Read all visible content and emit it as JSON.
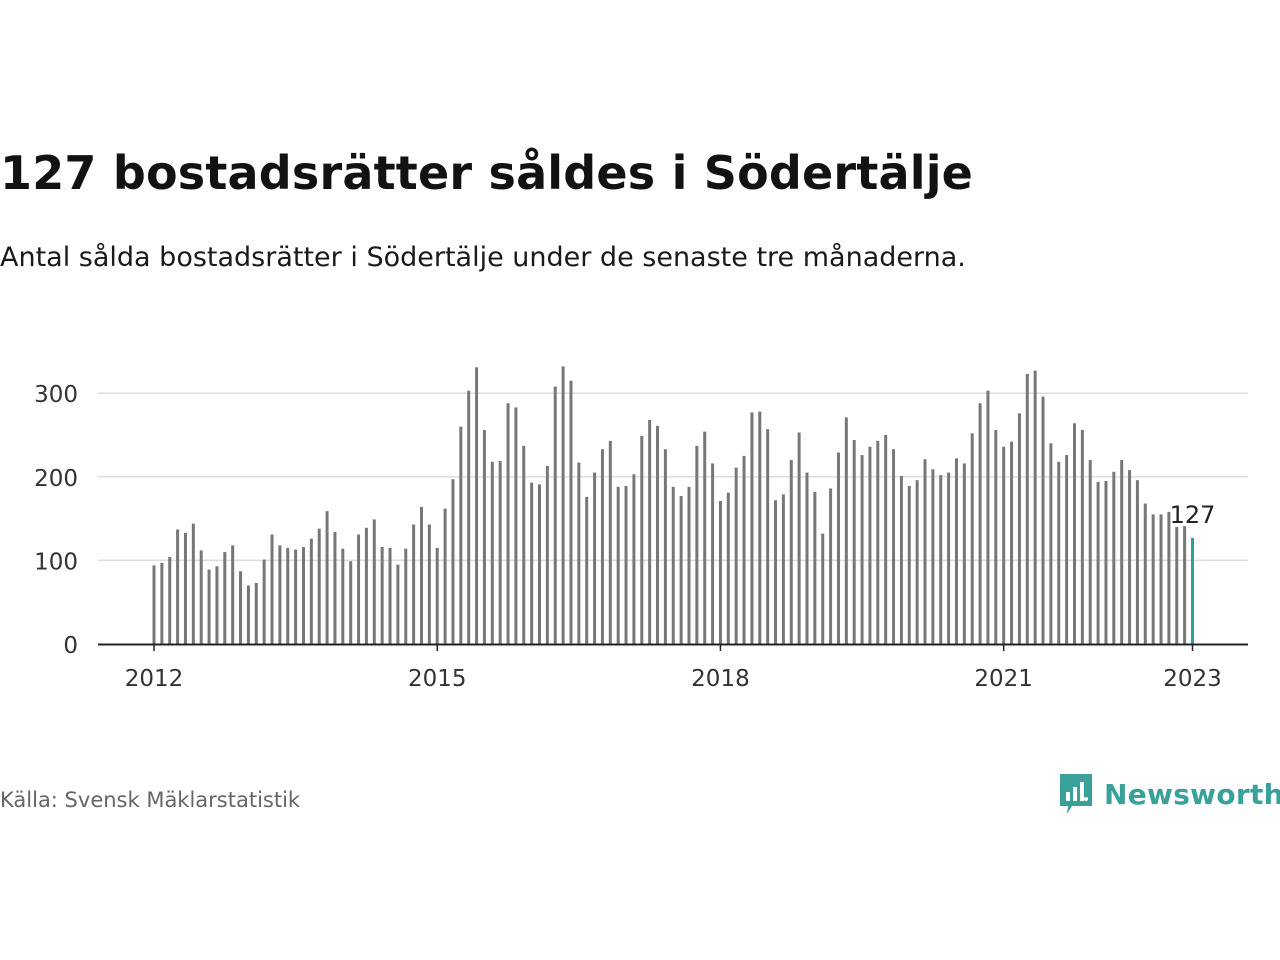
{
  "header": {
    "title": "127 bostadsrätter såldes i Södertälje",
    "subtitle": "Antal sålda bostadsrätter i Södertälje under de senaste tre månaderna."
  },
  "footer": {
    "source": "Källa: Svensk Mäklarstatistik",
    "brand": "Newsworthy",
    "brand_icon": "bar-chart-speech-bubble-icon"
  },
  "colors": {
    "bar": "#777777",
    "highlight": "#26a69a",
    "brand": "#3aa09a",
    "grid": "#dddddd"
  },
  "chart_data": {
    "type": "bar",
    "title": "127 bostadsrätter såldes i Södertälje",
    "subtitle": "Antal sålda bostadsrätter i Södertälje under de senaste tre månaderna.",
    "xlabel": "",
    "ylabel": "",
    "ylim": [
      0,
      330
    ],
    "yticks": [
      0,
      100,
      200,
      300
    ],
    "xticks": [
      "2012",
      "2015",
      "2018",
      "2021",
      "2023"
    ],
    "grid": true,
    "legend": "none",
    "highlight_label": "127",
    "start": "2012-01",
    "end": "2023-01",
    "frequency": "monthly",
    "values": [
      94,
      97,
      104,
      137,
      133,
      144,
      112,
      89,
      93,
      110,
      118,
      87,
      70,
      73,
      101,
      131,
      118,
      115,
      113,
      116,
      126,
      138,
      159,
      134,
      114,
      99,
      131,
      139,
      149,
      116,
      115,
      95,
      114,
      143,
      164,
      143,
      115,
      162,
      197,
      260,
      303,
      331,
      256,
      218,
      219,
      288,
      283,
      237,
      193,
      191,
      213,
      308,
      332,
      315,
      217,
      176,
      205,
      233,
      243,
      188,
      189,
      203,
      249,
      268,
      261,
      233,
      188,
      177,
      188,
      237,
      254,
      216,
      171,
      181,
      211,
      225,
      277,
      278,
      257,
      172,
      179,
      220,
      253,
      205,
      182,
      132,
      186,
      229,
      271,
      244,
      226,
      236,
      243,
      250,
      233,
      201,
      189,
      196,
      221,
      209,
      202,
      205,
      222,
      216,
      252,
      288,
      303,
      256,
      236,
      242,
      276,
      323,
      327,
      296,
      240,
      218,
      226,
      264,
      256,
      220,
      194,
      195,
      206,
      220,
      208,
      196,
      168,
      155,
      155,
      158,
      140,
      141,
      127
    ]
  }
}
